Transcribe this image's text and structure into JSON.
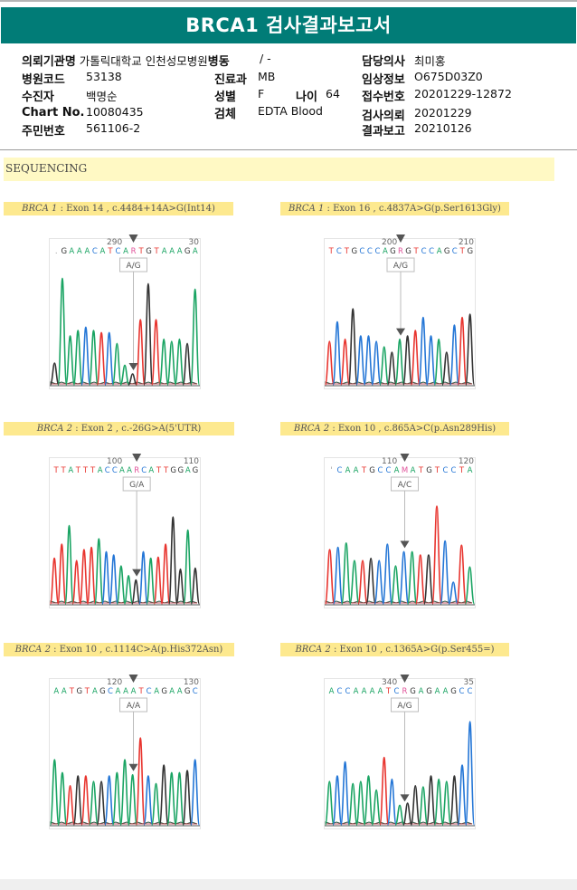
{
  "report": {
    "title": "BRCA1 검사결과보고서",
    "fields": {
      "institution_label": "의뢰기관명",
      "institution_value": "가톨릭대학교 인천성모병원",
      "ward_label": "병동",
      "ward_value": "/ -",
      "doctor_label": "담당의사",
      "doctor_value": "최미홍",
      "hospital_code_label": "병원코드",
      "hospital_code_value": "53138",
      "department_label": "진료과",
      "department_value": "MB",
      "clinical_info_label": "임상정보",
      "clinical_info_value": "O675D03Z0",
      "patient_label": "수진자",
      "patient_value": "백명순",
      "sex_label": "성별",
      "sex_value": "F",
      "age_label": "나이",
      "age_value": "64",
      "receipt_no_label": "접수번호",
      "receipt_no_value": "20201229-12872",
      "chart_no_label": "Chart No.",
      "chart_no_value": "10080435",
      "specimen_label": "검체",
      "specimen_value": "EDTA Blood",
      "request_date_label": "검사의뢰",
      "request_date_value": "20201229",
      "resident_no_label": "주민번호",
      "resident_no_value": "561106-2",
      "report_date_label": "결과보고",
      "report_date_value": "20210126"
    }
  },
  "sequencing": {
    "section_title": "SEQUENCING",
    "colors": {
      "A": "#1aa463",
      "C": "#2476d6",
      "G": "#333333",
      "T": "#e8352f",
      "R": "#e0529a",
      "M": "#e0529a"
    },
    "panels": [
      {
        "gene": "BRCA 1",
        "description": ": Exon 14 , c.4484+14A>G(Int14)",
        "tick_left": "290",
        "tick_right": "30",
        "sequence": ".GAAACATCARTGTAAAGA",
        "variant_index": 10,
        "genotype": "A/G",
        "peaks": [
          [
            "G",
            0.2
          ],
          [
            "A",
            0.98
          ],
          [
            "A",
            0.45
          ],
          [
            "A",
            0.5
          ],
          [
            "C",
            0.53
          ],
          [
            "A",
            0.5
          ],
          [
            "T",
            0.48
          ],
          [
            "C",
            0.48
          ],
          [
            "A",
            0.38
          ],
          [
            "A",
            0.18
          ],
          [
            "G",
            0.1
          ],
          [
            "T",
            0.6
          ],
          [
            "G",
            0.93
          ],
          [
            "T",
            0.6
          ],
          [
            "A",
            0.42
          ],
          [
            "A",
            0.4
          ],
          [
            "A",
            0.42
          ],
          [
            "G",
            0.38
          ],
          [
            "A",
            0.88
          ]
        ]
      },
      {
        "gene": "BRCA 1",
        "description": ": Exon 16 , c.4837A>G(p.Ser1613Gly)",
        "tick_left": "200",
        "tick_right": "210",
        "sequence": "TCTGCCCAGRGTCCAGCTG",
        "variant_index": 9,
        "genotype": "A/G",
        "peaks": [
          [
            "T",
            0.4
          ],
          [
            "C",
            0.58
          ],
          [
            "T",
            0.42
          ],
          [
            "G",
            0.7
          ],
          [
            "C",
            0.45
          ],
          [
            "C",
            0.45
          ],
          [
            "C",
            0.4
          ],
          [
            "A",
            0.35
          ],
          [
            "G",
            0.3
          ],
          [
            "A",
            0.42
          ],
          [
            "G",
            0.45
          ],
          [
            "T",
            0.5
          ],
          [
            "C",
            0.62
          ],
          [
            "C",
            0.45
          ],
          [
            "A",
            0.42
          ],
          [
            "G",
            0.3
          ],
          [
            "C",
            0.55
          ],
          [
            "T",
            0.62
          ],
          [
            "G",
            0.65
          ]
        ]
      },
      {
        "gene": "BRCA 2",
        "description": ": Exon 2 , c.-26G>A(5'UTR)",
        "tick_left": "100",
        "tick_right": "110",
        "sequence": "TTATTTACCAARCATTGGAG",
        "variant_index": 11,
        "genotype": "G/A",
        "peaks": [
          [
            "T",
            0.42
          ],
          [
            "T",
            0.55
          ],
          [
            "A",
            0.72
          ],
          [
            "T",
            0.4
          ],
          [
            "T",
            0.5
          ],
          [
            "T",
            0.52
          ],
          [
            "A",
            0.6
          ],
          [
            "C",
            0.48
          ],
          [
            "C",
            0.45
          ],
          [
            "A",
            0.35
          ],
          [
            "A",
            0.26
          ],
          [
            "G",
            0.22
          ],
          [
            "C",
            0.48
          ],
          [
            "A",
            0.42
          ],
          [
            "T",
            0.43
          ],
          [
            "T",
            0.55
          ],
          [
            "G",
            0.8
          ],
          [
            "G",
            0.32
          ],
          [
            "A",
            0.68
          ],
          [
            "G",
            0.33
          ]
        ]
      },
      {
        "gene": "BRCA 2",
        "description": ": Exon 10 , c.865A>C(p.Asn289His)",
        "tick_left": "110",
        "tick_right": "120",
        "sequence": "'CAATGCCAMATGTCCTA",
        "variant_index": 9,
        "genotype": "A/C",
        "peaks": [
          [
            "T",
            0.5
          ],
          [
            "C",
            0.52
          ],
          [
            "A",
            0.56
          ],
          [
            "A",
            0.4
          ],
          [
            "T",
            0.4
          ],
          [
            "G",
            0.42
          ],
          [
            "C",
            0.4
          ],
          [
            "C",
            0.55
          ],
          [
            "A",
            0.35
          ],
          [
            "C",
            0.48
          ],
          [
            "A",
            0.48
          ],
          [
            "T",
            0.45
          ],
          [
            "G",
            0.45
          ],
          [
            "T",
            0.9
          ],
          [
            "C",
            0.58
          ],
          [
            "C",
            0.2
          ],
          [
            "T",
            0.54
          ],
          [
            "A",
            0.34
          ]
        ]
      },
      {
        "gene": "BRCA 2",
        "description": ": Exon 10 , c.1114C>A(p.His372Asn)",
        "tick_left": "120",
        "tick_right": "130",
        "sequence": "AATGTAGCAAATCAGAAGC",
        "variant_index": 10,
        "genotype": "A/A",
        "peaks": [
          [
            "A",
            0.6
          ],
          [
            "A",
            0.48
          ],
          [
            "T",
            0.36
          ],
          [
            "G",
            0.45
          ],
          [
            "T",
            0.45
          ],
          [
            "A",
            0.4
          ],
          [
            "G",
            0.4
          ],
          [
            "C",
            0.45
          ],
          [
            "A",
            0.48
          ],
          [
            "A",
            0.6
          ],
          [
            "A",
            0.46
          ],
          [
            "T",
            0.8
          ],
          [
            "C",
            0.45
          ],
          [
            "A",
            0.38
          ],
          [
            "G",
            0.55
          ],
          [
            "A",
            0.48
          ],
          [
            "A",
            0.48
          ],
          [
            "G",
            0.5
          ],
          [
            "C",
            0.6
          ]
        ]
      },
      {
        "gene": "BRCA 2",
        "description": ": Exon 10 , c.1365A>G(p.Ser455=)",
        "tick_left": "340",
        "tick_right": "35",
        "sequence": "ACCAAAATCRGAGAAGCC",
        "variant_index": 9,
        "genotype": "A/G",
        "peaks": [
          [
            "A",
            0.4
          ],
          [
            "C",
            0.45
          ],
          [
            "C",
            0.58
          ],
          [
            "A",
            0.38
          ],
          [
            "A",
            0.4
          ],
          [
            "A",
            0.45
          ],
          [
            "A",
            0.32
          ],
          [
            "T",
            0.62
          ],
          [
            "C",
            0.42
          ],
          [
            "A",
            0.18
          ],
          [
            "G",
            0.2
          ],
          [
            "G",
            0.36
          ],
          [
            "A",
            0.35
          ],
          [
            "G",
            0.45
          ],
          [
            "A",
            0.42
          ],
          [
            "A",
            0.4
          ],
          [
            "G",
            0.45
          ],
          [
            "C",
            0.55
          ],
          [
            "C",
            0.95
          ]
        ]
      }
    ]
  }
}
